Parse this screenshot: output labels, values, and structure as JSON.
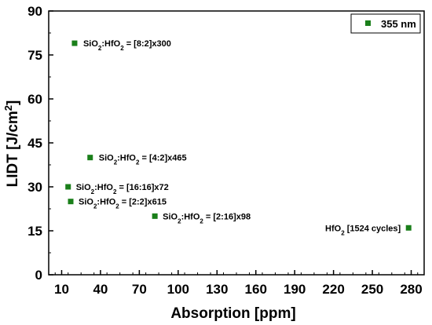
{
  "chart_data": {
    "type": "scatter",
    "xlabel": "Absorption [ppm]",
    "ylabel_parts": [
      "LIDT [J/cm",
      "2",
      "]"
    ],
    "xlim": [
      0,
      290
    ],
    "ylim": [
      0,
      90
    ],
    "x_ticks": [
      10,
      40,
      70,
      100,
      130,
      160,
      190,
      220,
      250,
      280
    ],
    "y_ticks": [
      0,
      15,
      30,
      45,
      60,
      75,
      90
    ],
    "grid": false,
    "legend_position": "top-right",
    "series": [
      {
        "name": "355 nm",
        "color": "#1a7f1a",
        "marker": "square",
        "points": [
          {
            "x": 20,
            "y": 79,
            "label_parts": [
              "SiO",
              "2",
              ":HfO",
              "2",
              " = [8:2]x300"
            ]
          },
          {
            "x": 32,
            "y": 40,
            "label_parts": [
              "SiO",
              "2",
              ":HfO",
              "2",
              " = [4:2]x465"
            ]
          },
          {
            "x": 15,
            "y": 30,
            "label_parts": [
              "SiO",
              "2",
              ":HfO",
              "2",
              " = [16:16]x72"
            ]
          },
          {
            "x": 17,
            "y": 25,
            "label_parts": [
              "SiO",
              "2",
              ":HfO",
              "2",
              " = [2:2]x615"
            ]
          },
          {
            "x": 82,
            "y": 20,
            "label_parts": [
              "SiO",
              "2",
              ":HfO",
              "2",
              " = [2:16]x98"
            ]
          },
          {
            "x": 278,
            "y": 16,
            "label_parts": [
              "HfO",
              "2",
              " [1524 cycles]"
            ]
          }
        ]
      }
    ]
  }
}
